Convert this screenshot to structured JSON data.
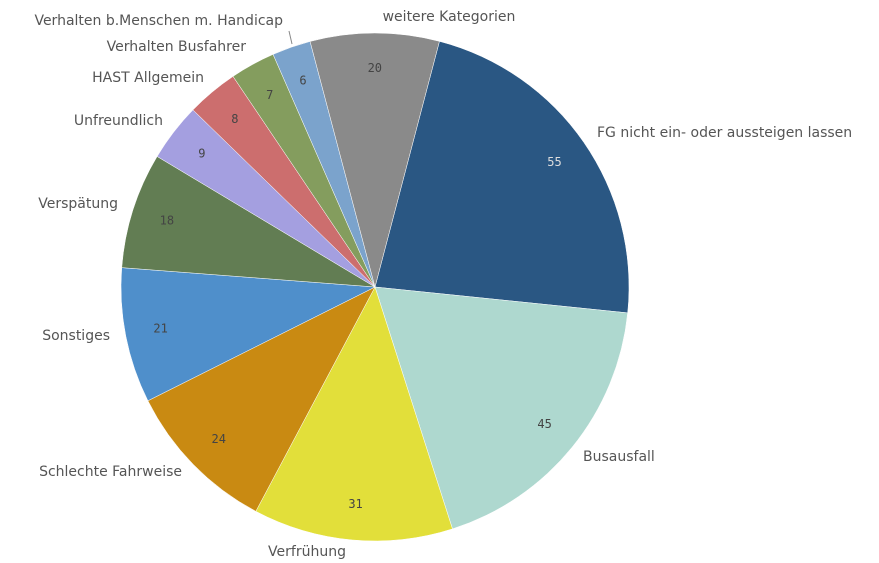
{
  "chart_data": {
    "type": "pie",
    "categories": [
      "FG nicht ein- oder aussteigen lassen",
      "Busausfall",
      "Verfrühung",
      "Schlechte Fahrweise",
      "Sonstiges",
      "Verspätung",
      "Unfreundlich",
      "HAST Allgemein",
      "Verhalten Busfahrer",
      "Verhalten b.Menschen m. Handicap",
      "weitere Kategorien"
    ],
    "values": [
      55,
      45,
      31,
      24,
      21,
      18,
      9,
      8,
      7,
      6,
      20
    ],
    "colors": [
      "#2a5783",
      "#aed8cf",
      "#e2df3a",
      "#c98a12",
      "#4f8fcb",
      "#627d53",
      "#a49fe0",
      "#cc6e6e",
      "#849d5e",
      "#7ba3cc",
      "#8a8a8a"
    ]
  }
}
